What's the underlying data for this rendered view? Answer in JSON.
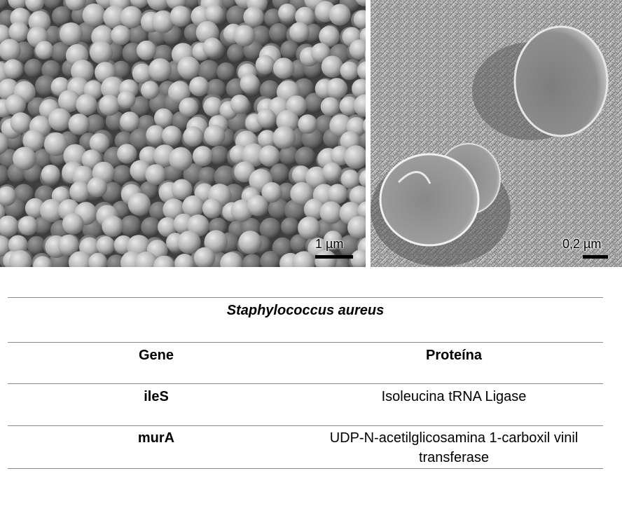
{
  "figure": {
    "left_scale": "1 µm",
    "right_scale": "0,2 µm"
  },
  "table": {
    "title": "Staphylococcus aureus",
    "headers": {
      "gene": "Gene",
      "protein": "Proteína"
    },
    "rows": [
      {
        "gene": "ileS",
        "protein": "Isoleucina tRNA Ligase"
      },
      {
        "gene": "murA",
        "protein": "UDP-N-acetilglicosamina 1-carboxil vinil transferase"
      }
    ]
  }
}
